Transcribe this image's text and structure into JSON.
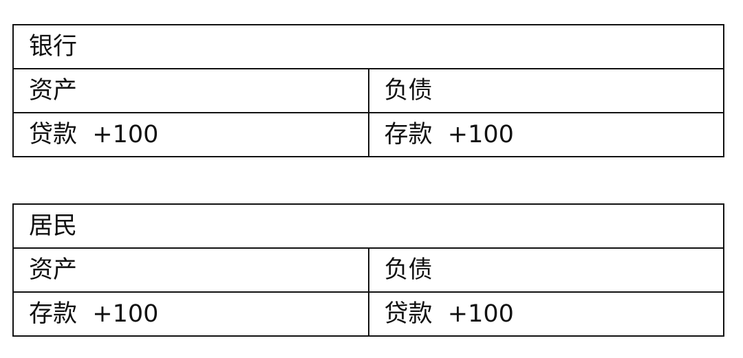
{
  "tables": [
    {
      "title": "银行",
      "headers": [
        "资产",
        "负债"
      ],
      "row": [
        "贷款  +100",
        "存款  +100"
      ]
    },
    {
      "title": "居民",
      "headers": [
        "资产",
        "负债"
      ],
      "row": [
        "存款  +100",
        "贷款  +100"
      ]
    }
  ]
}
